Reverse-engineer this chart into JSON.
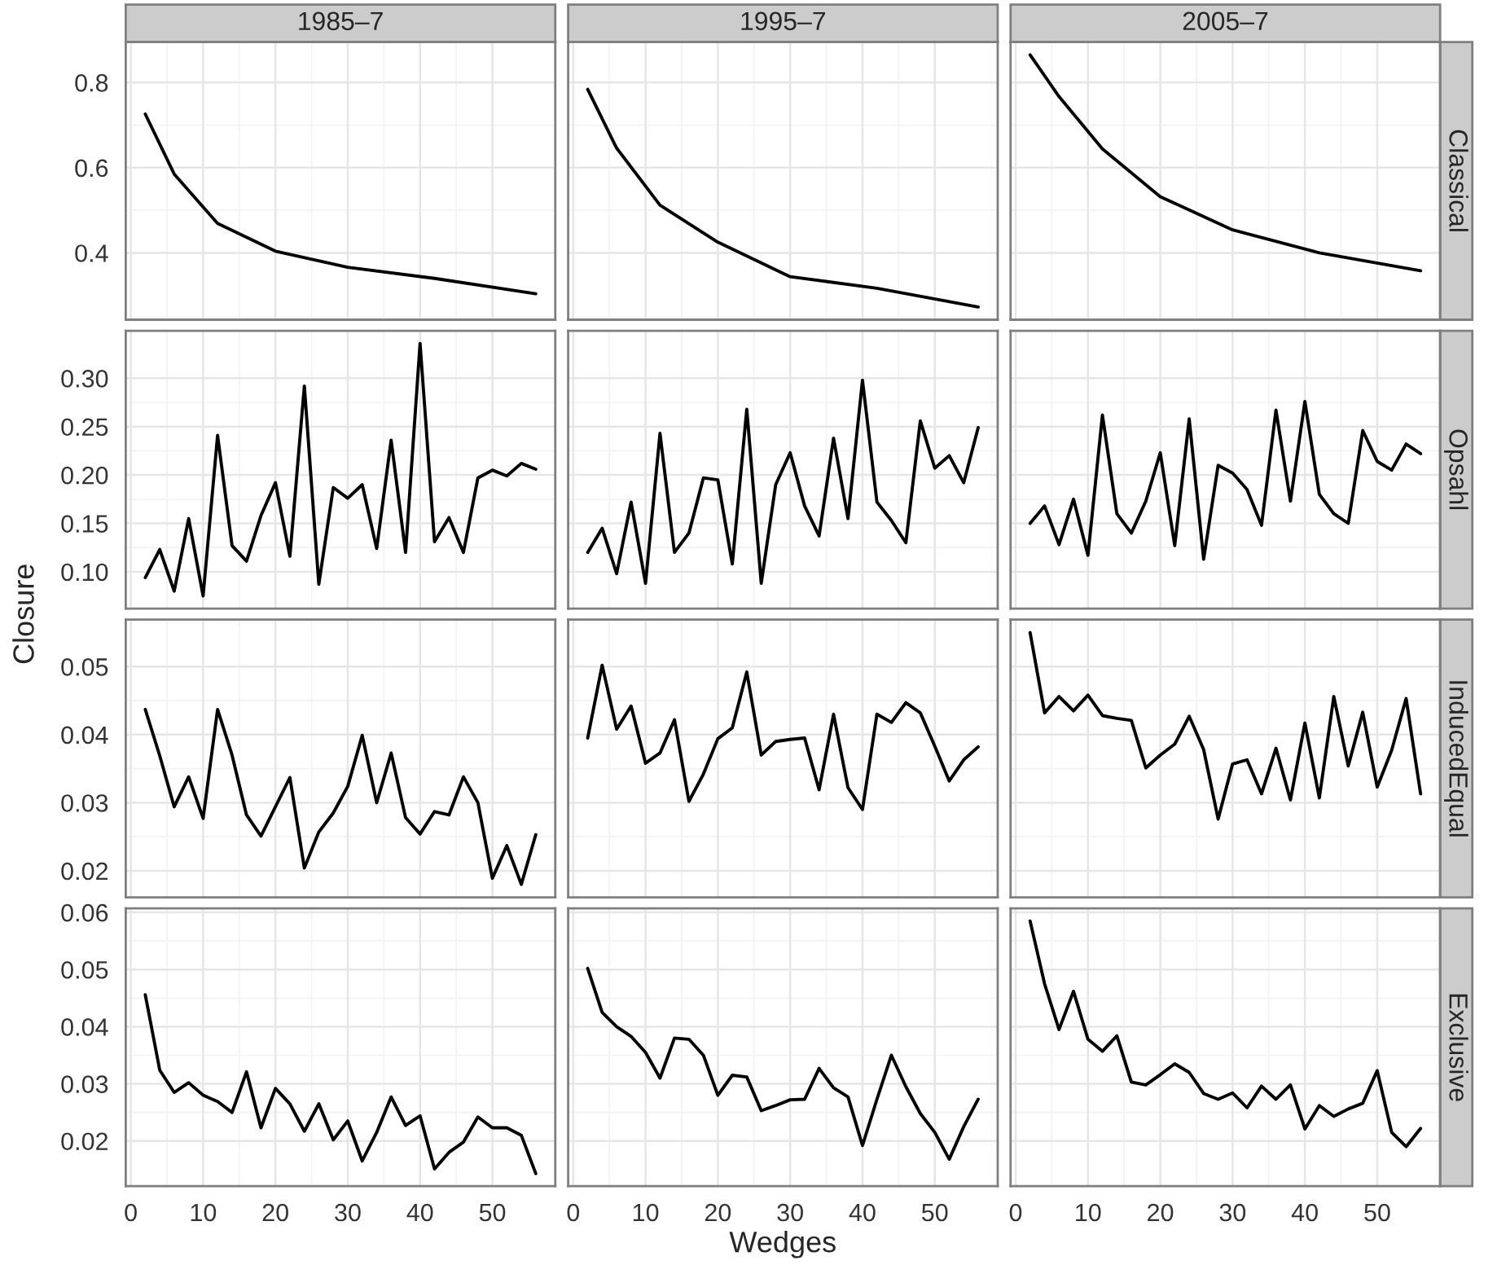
{
  "chart_data": [
    {
      "type": "line",
      "title": "1985–7",
      "x": [
        2,
        6,
        12,
        20,
        30,
        42,
        56
      ],
      "values": [
        0.726,
        0.585,
        0.469,
        0.404,
        0.366,
        0.34,
        0.304
      ],
      "color": "#000000",
      "xlim": [
        -0.7,
        58.7
      ],
      "xticks": [
        0,
        10,
        20,
        30,
        40,
        50
      ],
      "ylim": [
        0.243,
        0.895
      ],
      "yticks": [
        0.4,
        0.6,
        0.8
      ],
      "tick_labels": "y",
      "grid": true
    },
    {
      "type": "line",
      "title": "1995–7",
      "x": [
        2,
        6,
        12,
        20,
        30,
        42,
        56
      ],
      "values": [
        0.784,
        0.646,
        0.512,
        0.425,
        0.344,
        0.317,
        0.273
      ],
      "color": "#000000",
      "xlim": [
        -0.7,
        58.7
      ],
      "xticks": [
        0,
        10,
        20,
        30,
        40,
        50
      ],
      "ylim": [
        0.243,
        0.895
      ],
      "yticks": [
        0.4,
        0.6,
        0.8
      ],
      "tick_labels": false,
      "grid": true
    },
    {
      "type": "line",
      "title": "2005–7",
      "annotations": [
        "Classical"
      ],
      "x": [
        2,
        6,
        12,
        20,
        30,
        42,
        56
      ],
      "values": [
        0.865,
        0.767,
        0.644,
        0.532,
        0.454,
        0.4,
        0.358
      ],
      "color": "#000000",
      "xlim": [
        -0.7,
        58.7
      ],
      "xticks": [
        0,
        10,
        20,
        30,
        40,
        50
      ],
      "ylim": [
        0.243,
        0.895
      ],
      "yticks": [
        0.4,
        0.6,
        0.8
      ],
      "tick_labels": false,
      "grid": true
    },
    {
      "type": "line",
      "x": [
        2,
        4,
        6,
        8,
        10,
        12,
        14,
        16,
        18,
        20,
        22,
        24,
        26,
        28,
        30,
        32,
        34,
        36,
        38,
        40,
        42,
        44,
        46,
        48,
        50,
        52,
        54,
        56
      ],
      "values": [
        0.094,
        0.123,
        0.08,
        0.155,
        0.075,
        0.241,
        0.127,
        0.111,
        0.158,
        0.192,
        0.116,
        0.292,
        0.087,
        0.187,
        0.176,
        0.19,
        0.124,
        0.236,
        0.12,
        0.336,
        0.131,
        0.156,
        0.12,
        0.197,
        0.205,
        0.199,
        0.212,
        0.206
      ],
      "color": "#000000",
      "xlim": [
        -0.7,
        58.7
      ],
      "xticks": [
        0,
        10,
        20,
        30,
        40,
        50
      ],
      "ylim": [
        0.062,
        0.349
      ],
      "yticks": [
        {
          "value": 0.1,
          "label": "0.10"
        },
        {
          "value": 0.15,
          "label": "0.15"
        },
        {
          "value": 0.2,
          "label": "0.20"
        },
        {
          "value": 0.25,
          "label": "0.25"
        },
        {
          "value": 0.3,
          "label": "0.30"
        }
      ],
      "tick_labels": "y",
      "grid": true
    },
    {
      "type": "line",
      "x": [
        2,
        4,
        6,
        8,
        10,
        12,
        14,
        16,
        18,
        20,
        22,
        24,
        26,
        28,
        30,
        32,
        34,
        36,
        38,
        40,
        42,
        44,
        46,
        48,
        50,
        52,
        54,
        56
      ],
      "values": [
        0.12,
        0.145,
        0.098,
        0.172,
        0.088,
        0.243,
        0.12,
        0.14,
        0.197,
        0.195,
        0.108,
        0.268,
        0.088,
        0.19,
        0.223,
        0.168,
        0.137,
        0.238,
        0.155,
        0.298,
        0.172,
        0.153,
        0.13,
        0.256,
        0.207,
        0.22,
        0.192,
        0.249
      ],
      "color": "#000000",
      "xlim": [
        -0.7,
        58.7
      ],
      "xticks": [
        0,
        10,
        20,
        30,
        40,
        50
      ],
      "ylim": [
        0.062,
        0.349
      ],
      "yticks": [
        0.1,
        0.15,
        0.2,
        0.25,
        0.3
      ],
      "tick_labels": false,
      "grid": true
    },
    {
      "type": "line",
      "annotations": [
        "Opsahl"
      ],
      "x": [
        2,
        4,
        6,
        8,
        10,
        12,
        14,
        16,
        18,
        20,
        22,
        24,
        26,
        28,
        30,
        32,
        34,
        36,
        38,
        40,
        42,
        44,
        46,
        48,
        50,
        52,
        54,
        56
      ],
      "values": [
        0.15,
        0.168,
        0.128,
        0.175,
        0.117,
        0.262,
        0.16,
        0.14,
        0.173,
        0.223,
        0.127,
        0.258,
        0.113,
        0.21,
        0.202,
        0.185,
        0.148,
        0.267,
        0.173,
        0.276,
        0.18,
        0.16,
        0.15,
        0.246,
        0.214,
        0.205,
        0.232,
        0.222
      ],
      "color": "#000000",
      "xlim": [
        -0.7,
        58.7
      ],
      "xticks": [
        0,
        10,
        20,
        30,
        40,
        50
      ],
      "ylim": [
        0.062,
        0.349
      ],
      "yticks": [
        0.1,
        0.15,
        0.2,
        0.25,
        0.3
      ],
      "tick_labels": false,
      "grid": true
    },
    {
      "type": "line",
      "ylabel": "Closure",
      "x": [
        2,
        4,
        6,
        8,
        10,
        12,
        14,
        16,
        18,
        20,
        22,
        24,
        26,
        28,
        30,
        32,
        34,
        36,
        38,
        40,
        42,
        44,
        46,
        48,
        50,
        52,
        54,
        56
      ],
      "values": [
        0.0437,
        0.0369,
        0.0294,
        0.0338,
        0.0277,
        0.0437,
        0.037,
        0.0282,
        0.0251,
        0.0294,
        0.0337,
        0.0204,
        0.0257,
        0.0285,
        0.0324,
        0.0399,
        0.03,
        0.0373,
        0.0278,
        0.0254,
        0.0287,
        0.0282,
        0.0338,
        0.03,
        0.0189,
        0.0237,
        0.018,
        0.0253
      ],
      "color": "#000000",
      "xlim": [
        -0.7,
        58.7
      ],
      "xticks": [
        0,
        10,
        20,
        30,
        40,
        50
      ],
      "ylim": [
        0.0161,
        0.0569
      ],
      "yticks": [
        0.02,
        0.03,
        0.04,
        0.05
      ],
      "tick_labels": "y",
      "grid": true
    },
    {
      "type": "line",
      "x": [
        2,
        4,
        6,
        8,
        10,
        12,
        14,
        16,
        18,
        20,
        22,
        24,
        26,
        28,
        30,
        32,
        34,
        36,
        38,
        40,
        42,
        44,
        46,
        48,
        50,
        52,
        54,
        56
      ],
      "values": [
        0.0395,
        0.0502,
        0.0408,
        0.0442,
        0.0358,
        0.0373,
        0.0422,
        0.0302,
        0.0342,
        0.0394,
        0.041,
        0.0492,
        0.037,
        0.039,
        0.0393,
        0.0395,
        0.0319,
        0.043,
        0.0322,
        0.029,
        0.043,
        0.0418,
        0.0447,
        0.0432,
        0.0383,
        0.0332,
        0.0363,
        0.0382
      ],
      "color": "#000000",
      "xlim": [
        -0.7,
        58.7
      ],
      "xticks": [
        0,
        10,
        20,
        30,
        40,
        50
      ],
      "ylim": [
        0.0161,
        0.0569
      ],
      "yticks": [
        0.02,
        0.03,
        0.04,
        0.05
      ],
      "tick_labels": false,
      "grid": true
    },
    {
      "type": "line",
      "annotations": [
        "InducedEqual"
      ],
      "x": [
        2,
        4,
        6,
        8,
        10,
        12,
        14,
        16,
        18,
        20,
        22,
        24,
        26,
        28,
        30,
        32,
        34,
        36,
        38,
        40,
        42,
        44,
        46,
        48,
        50,
        52,
        54,
        56
      ],
      "values": [
        0.055,
        0.0432,
        0.0456,
        0.0435,
        0.0458,
        0.0428,
        0.0424,
        0.0421,
        0.0351,
        0.037,
        0.0386,
        0.0427,
        0.0378,
        0.0276,
        0.0357,
        0.0363,
        0.0313,
        0.038,
        0.0304,
        0.0417,
        0.0307,
        0.0456,
        0.0354,
        0.0433,
        0.0323,
        0.0377,
        0.0453,
        0.0313
      ],
      "color": "#000000",
      "xlim": [
        -0.7,
        58.7
      ],
      "xticks": [
        0,
        10,
        20,
        30,
        40,
        50
      ],
      "ylim": [
        0.0161,
        0.0569
      ],
      "yticks": [
        0.02,
        0.03,
        0.04,
        0.05
      ],
      "tick_labels": false,
      "grid": true
    },
    {
      "type": "line",
      "x": [
        2,
        4,
        6,
        8,
        10,
        12,
        14,
        16,
        18,
        20,
        22,
        24,
        26,
        28,
        30,
        32,
        34,
        36,
        38,
        40,
        42,
        44,
        46,
        48,
        50,
        52,
        54,
        56
      ],
      "values": [
        0.0456,
        0.0324,
        0.0285,
        0.0302,
        0.028,
        0.0269,
        0.025,
        0.0321,
        0.0223,
        0.0292,
        0.0265,
        0.0217,
        0.0265,
        0.0202,
        0.0235,
        0.0165,
        0.0215,
        0.0277,
        0.0227,
        0.0244,
        0.0151,
        0.018,
        0.0198,
        0.0242,
        0.0223,
        0.0223,
        0.021,
        0.0143
      ],
      "color": "#000000",
      "xlim": [
        -0.7,
        58.7
      ],
      "xticks": [
        0,
        10,
        20,
        30,
        40,
        50
      ],
      "ylim": [
        0.0121,
        0.0607
      ],
      "yticks": [
        0.02,
        0.03,
        0.04,
        0.05,
        0.06
      ],
      "grid": true
    },
    {
      "type": "line",
      "xlabel": "Wedges",
      "x": [
        2,
        4,
        6,
        8,
        10,
        12,
        14,
        16,
        18,
        20,
        22,
        24,
        26,
        28,
        30,
        32,
        34,
        36,
        38,
        40,
        42,
        44,
        46,
        48,
        50,
        52,
        54,
        56
      ],
      "values": [
        0.0502,
        0.0425,
        0.04,
        0.0383,
        0.0355,
        0.031,
        0.038,
        0.0378,
        0.035,
        0.028,
        0.0315,
        0.0312,
        0.0253,
        0.0262,
        0.0272,
        0.0273,
        0.0327,
        0.0293,
        0.0277,
        0.0192,
        0.0273,
        0.035,
        0.0295,
        0.0248,
        0.0215,
        0.0168,
        0.0225,
        0.0273
      ],
      "color": "#000000",
      "xlim": [
        -0.7,
        58.7
      ],
      "xticks": [
        0,
        10,
        20,
        30,
        40,
        50
      ],
      "ylim": [
        0.0121,
        0.0607
      ],
      "yticks": [
        0.02,
        0.03,
        0.04,
        0.05,
        0.06
      ],
      "tick_labels": "x",
      "grid": true
    },
    {
      "type": "line",
      "annotations": [
        "Exclusive"
      ],
      "x": [
        2,
        4,
        6,
        8,
        10,
        12,
        14,
        16,
        18,
        20,
        22,
        24,
        26,
        28,
        30,
        32,
        34,
        36,
        38,
        40,
        42,
        44,
        46,
        48,
        50,
        52,
        54,
        56
      ],
      "values": [
        0.0585,
        0.0475,
        0.0395,
        0.0462,
        0.0378,
        0.0357,
        0.0384,
        0.0303,
        0.0298,
        0.0316,
        0.0335,
        0.032,
        0.0283,
        0.0273,
        0.0284,
        0.0258,
        0.0296,
        0.0273,
        0.0298,
        0.0221,
        0.0262,
        0.0243,
        0.0256,
        0.0266,
        0.0323,
        0.0215,
        0.019,
        0.0222
      ],
      "color": "#000000",
      "xlim": [
        -0.7,
        58.7
      ],
      "xticks": [
        0,
        10,
        20,
        30,
        40,
        50
      ],
      "ylim": [
        0.0121,
        0.0607
      ],
      "yticks": [
        0.02,
        0.03,
        0.04,
        0.05,
        0.06
      ],
      "tick_labels": "x",
      "grid": true
    }
  ]
}
